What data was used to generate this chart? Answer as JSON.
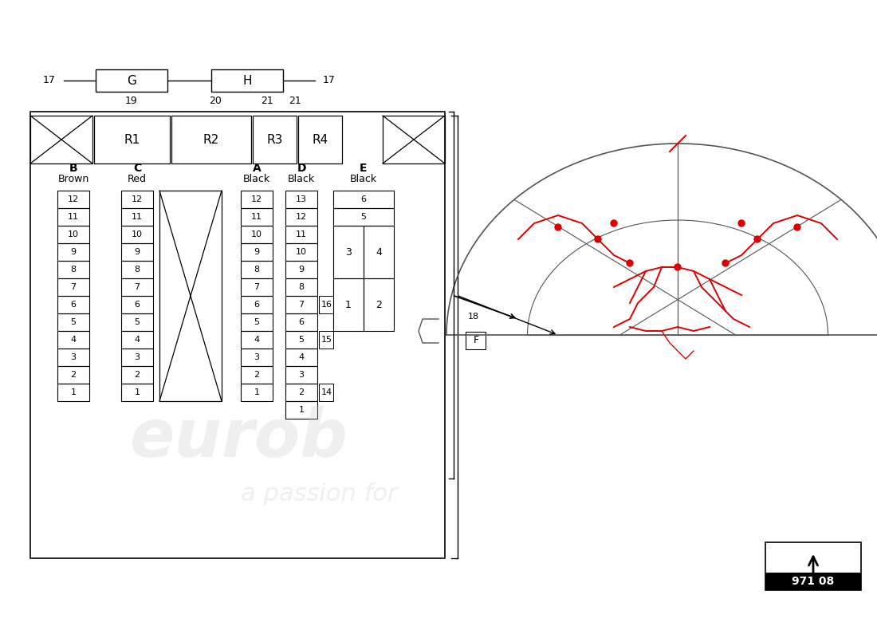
{
  "background_color": "#ffffff",
  "title": "971 08",
  "left_panel": {
    "connector_G": {
      "label": "G",
      "wire_num": "17",
      "conn_num": "19"
    },
    "connector_H": {
      "label": "H",
      "wire_num": "17",
      "conn_nums": [
        "20",
        "21",
        "21"
      ]
    },
    "relays": [
      "R1",
      "R2",
      "R3",
      "R4"
    ],
    "cols": [
      {
        "label": "B",
        "sublabel": "Brown",
        "nums": [
          12,
          11,
          10,
          9,
          8,
          7,
          6,
          5,
          4,
          3,
          2,
          1
        ]
      },
      {
        "label": "C",
        "sublabel": "Red",
        "nums": [
          12,
          11,
          10,
          9,
          8,
          7,
          6,
          5,
          4,
          3,
          2,
          1
        ]
      },
      {
        "label": "A",
        "sublabel": "Black",
        "nums": [
          12,
          11,
          10,
          9,
          8,
          7,
          6,
          5,
          4,
          3,
          2,
          1
        ]
      },
      {
        "label": "D",
        "sublabel": "Black",
        "nums": [
          13,
          12,
          11,
          10,
          9,
          8,
          7,
          6,
          5,
          4,
          3,
          2,
          1
        ]
      },
      {
        "label": "E",
        "sublabel": "Black",
        "nums": [
          6,
          5,
          3,
          4,
          1,
          2
        ]
      }
    ],
    "side_labels": [
      "16",
      "15",
      "14"
    ],
    "bracket_label": "18",
    "F_label": "F"
  }
}
